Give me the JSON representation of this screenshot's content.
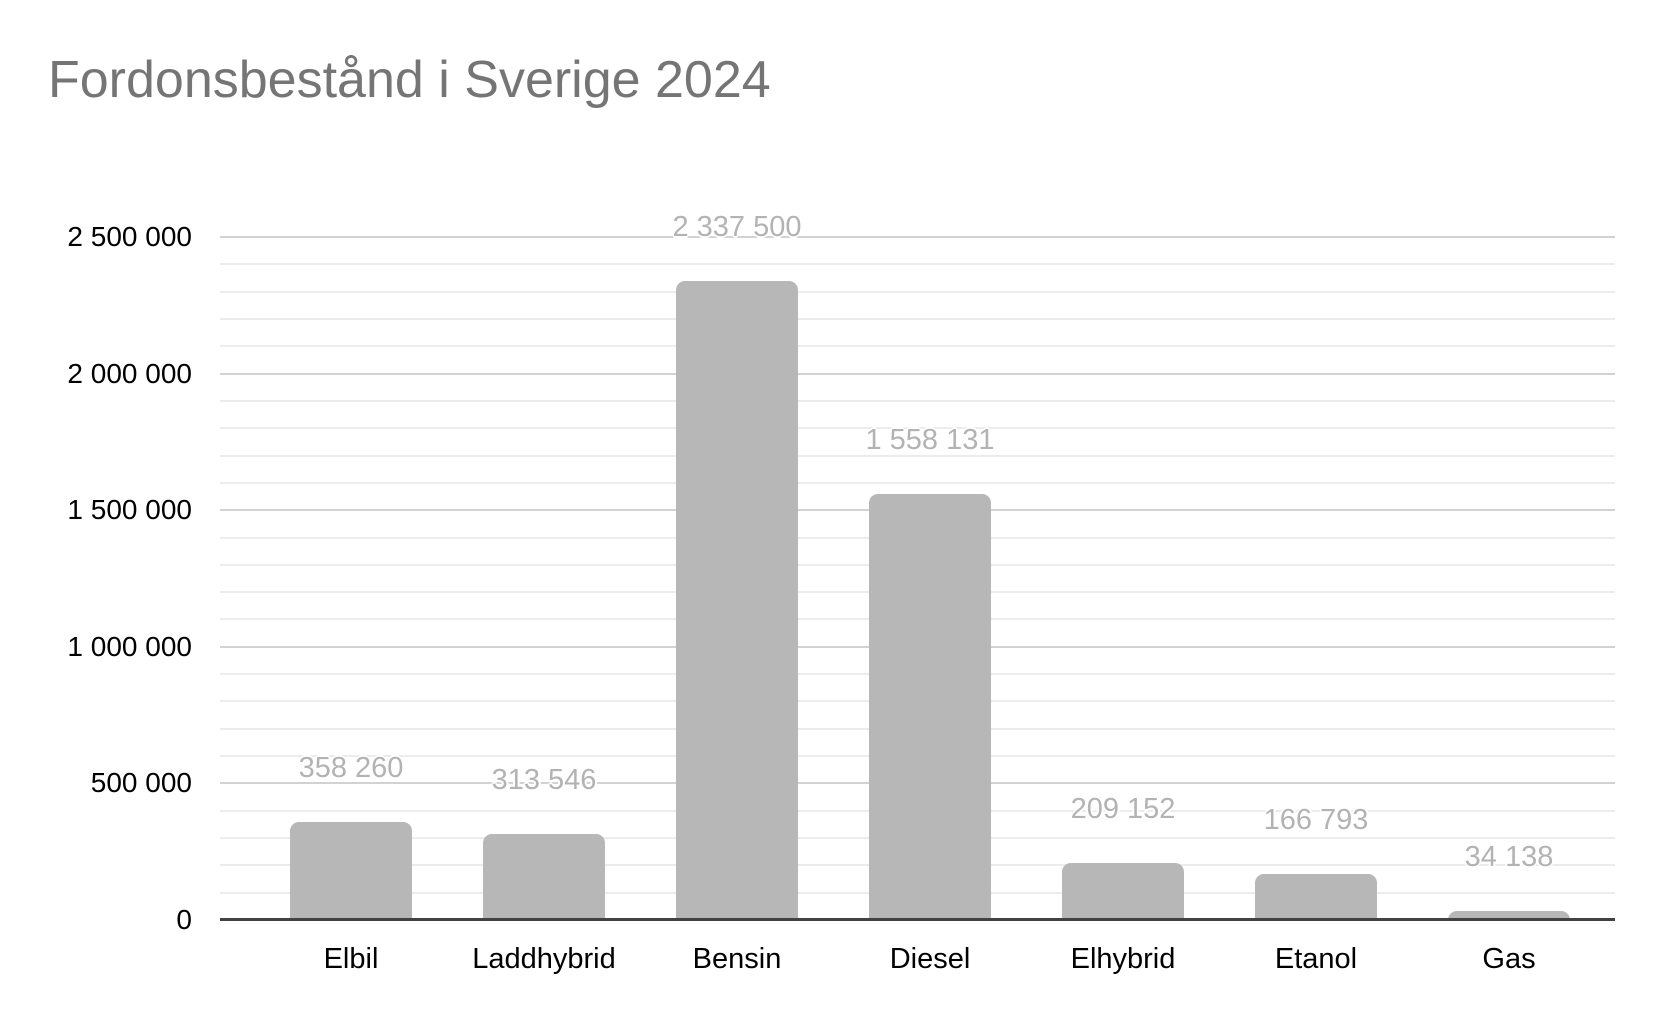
{
  "chart_data": {
    "type": "bar",
    "title": "Fordonsbestånd i Sverige 2024",
    "categories": [
      "Elbil",
      "Laddhybrid",
      "Bensin",
      "Diesel",
      "Elhybrid",
      "Etanol",
      "Gas"
    ],
    "values": [
      358260,
      313546,
      2337500,
      1558131,
      209152,
      166793,
      34138
    ],
    "data_labels": [
      "358 260",
      "313 546",
      "2 337 500",
      "1 558 131",
      "209 152",
      "166 793",
      "34 138"
    ],
    "xlabel": "",
    "ylabel": "",
    "ylim": [
      0,
      2500000
    ],
    "y_ticks": [
      0,
      500000,
      1000000,
      1500000,
      2000000,
      2500000
    ],
    "y_tick_labels": [
      "0",
      "500 000",
      "1 000 000",
      "1 500 000",
      "2 000 000",
      "2 500 000"
    ],
    "minor_grid_step": 100000,
    "major_grid_step": 500000,
    "grid": true,
    "legend": "none",
    "colors": {
      "bar": "#b7b7b7",
      "data_label": "#b3b3b3",
      "title": "#757575",
      "tick_label": "#000000",
      "major_grid": "#d2d2d2",
      "minor_grid": "#ececec",
      "axis_line": "#424242",
      "background": "#ffffff"
    }
  }
}
